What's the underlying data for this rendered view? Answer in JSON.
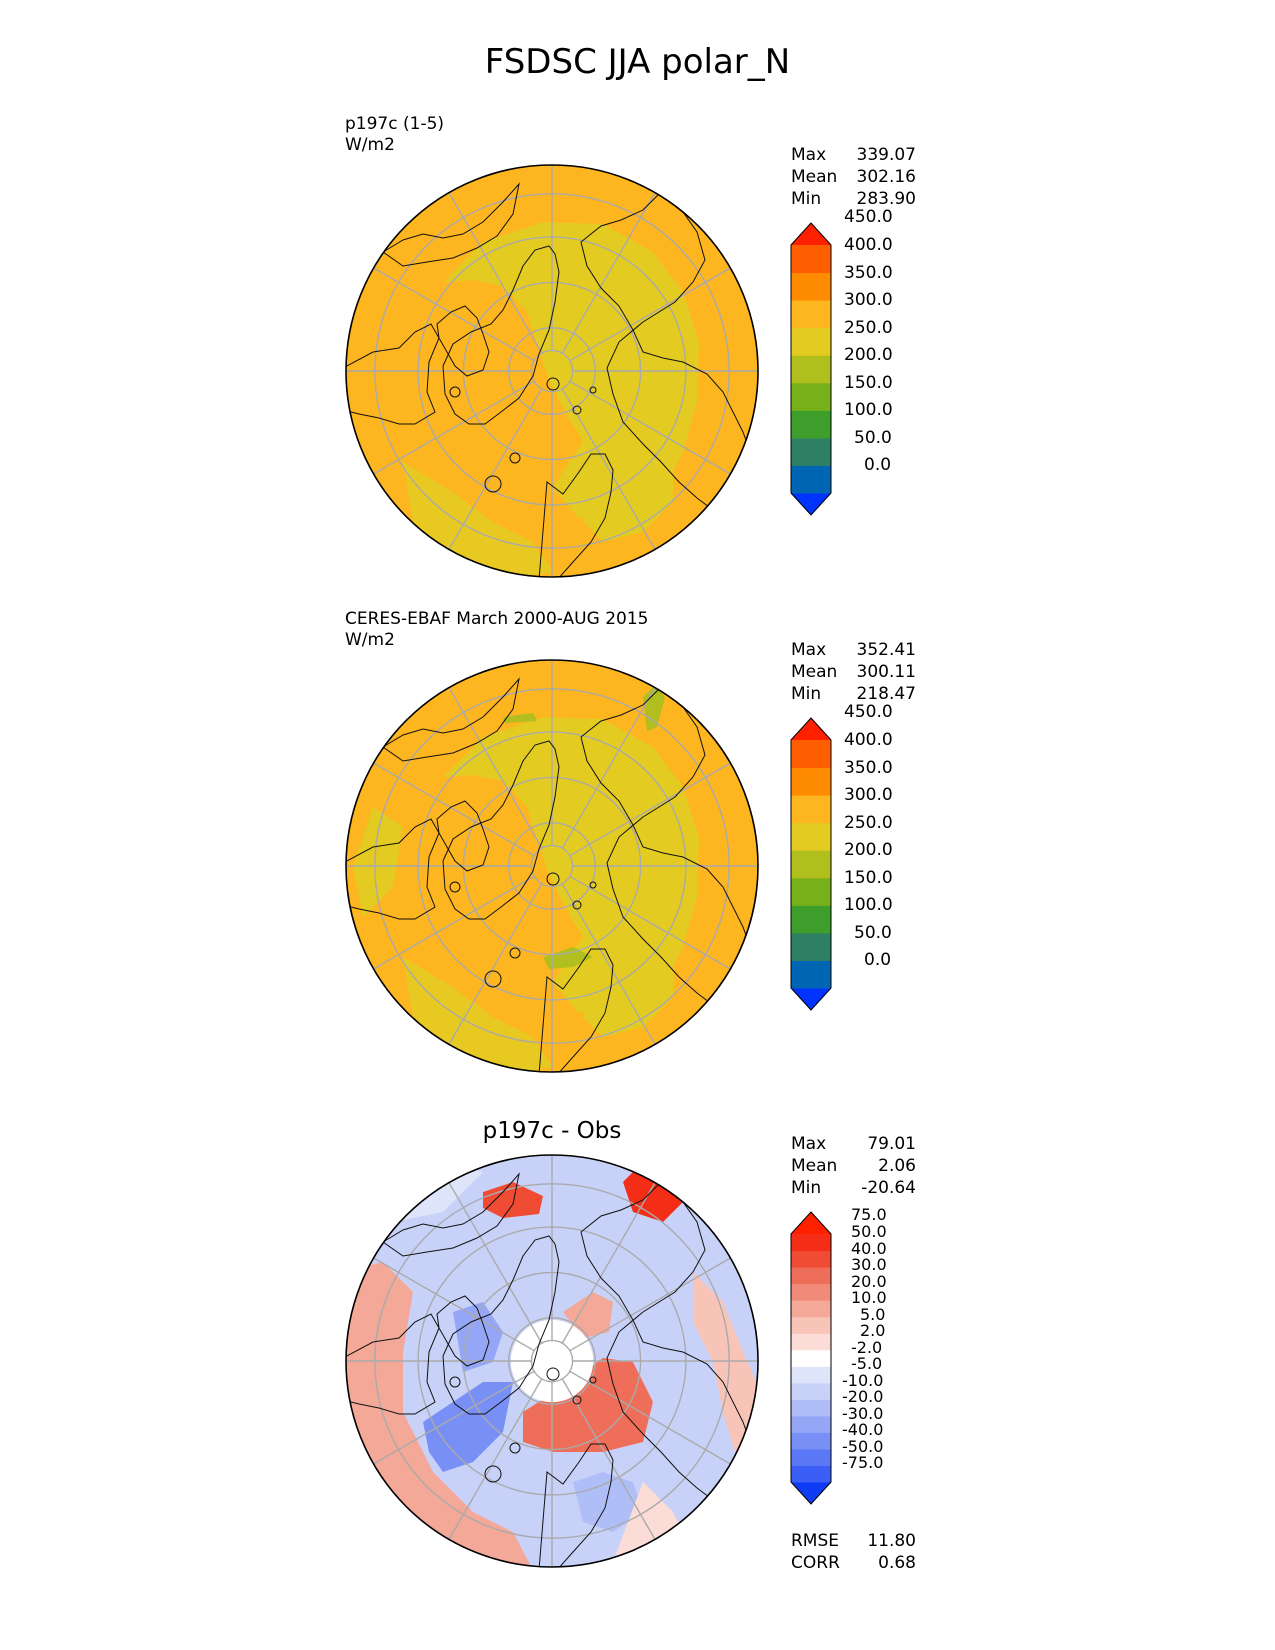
{
  "figure_title": "FSDSC JJA polar_N",
  "panels": [
    {
      "id": "test",
      "title_lines": [
        "p197c (1-5)",
        "W/m2"
      ],
      "stats": [
        {
          "label": "Max",
          "value": "339.07"
        },
        {
          "label": "Mean",
          "value": "302.16"
        },
        {
          "label": "Min",
          "value": "283.90"
        }
      ],
      "colorbar": "abs"
    },
    {
      "id": "obs",
      "title_lines": [
        "CERES-EBAF March 2000-AUG 2015",
        "W/m2"
      ],
      "stats": [
        {
          "label": "Max",
          "value": "352.41"
        },
        {
          "label": "Mean",
          "value": "300.11"
        },
        {
          "label": "Min",
          "value": "218.47"
        }
      ],
      "colorbar": "abs"
    },
    {
      "id": "diff",
      "center_title": "p197c - Obs",
      "stats": [
        {
          "label": "Max",
          "value": "79.01"
        },
        {
          "label": "Mean",
          "value": "2.06"
        },
        {
          "label": "Min",
          "value": "-20.64"
        }
      ],
      "extra_stats": [
        {
          "label": "RMSE",
          "value": "11.80"
        },
        {
          "label": "CORR",
          "value": "0.68"
        }
      ],
      "colorbar": "diff"
    }
  ],
  "colorbars": {
    "abs": {
      "levels": [
        "0.0",
        "50.0",
        "100.0",
        "150.0",
        "200.0",
        "250.0",
        "300.0",
        "350.0",
        "400.0",
        "450.0"
      ],
      "colors": [
        "#0033ff",
        "#0066b3",
        "#2e8065",
        "#3d9e2b",
        "#78b01a",
        "#b0be1e",
        "#e4cb22",
        "#fdb520",
        "#ff8c00",
        "#ff5f00",
        "#ff2000"
      ]
    },
    "diff": {
      "levels": [
        "-75.0",
        "-50.0",
        "-40.0",
        "-30.0",
        "-20.0",
        "-10.0",
        "-5.0",
        "-2.0",
        "2.0",
        "5.0",
        "10.0",
        "20.0",
        "30.0",
        "40.0",
        "50.0",
        "75.0"
      ],
      "colors": [
        "#0f3bf5",
        "#3b5ef7",
        "#5a78f5",
        "#7890f5",
        "#94a6f5",
        "#b0bef7",
        "#c8d2f8",
        "#dee5fa",
        "#ffffff",
        "#fbdcd6",
        "#f8c4b8",
        "#f4a898",
        "#f18a78",
        "#ef6e5a",
        "#f04c33",
        "#f42e16",
        "#ff2000"
      ]
    }
  },
  "map": {
    "projection": "north-polar-stereographic",
    "land": "#fdb520",
    "ocean": "#e4cb22",
    "grid": "#aaaaaa",
    "coast": "#111111",
    "diff_warm": "#f48a78",
    "diff_cool": "#b9c6f7",
    "diff_strong_warm": "#f03d22"
  }
}
